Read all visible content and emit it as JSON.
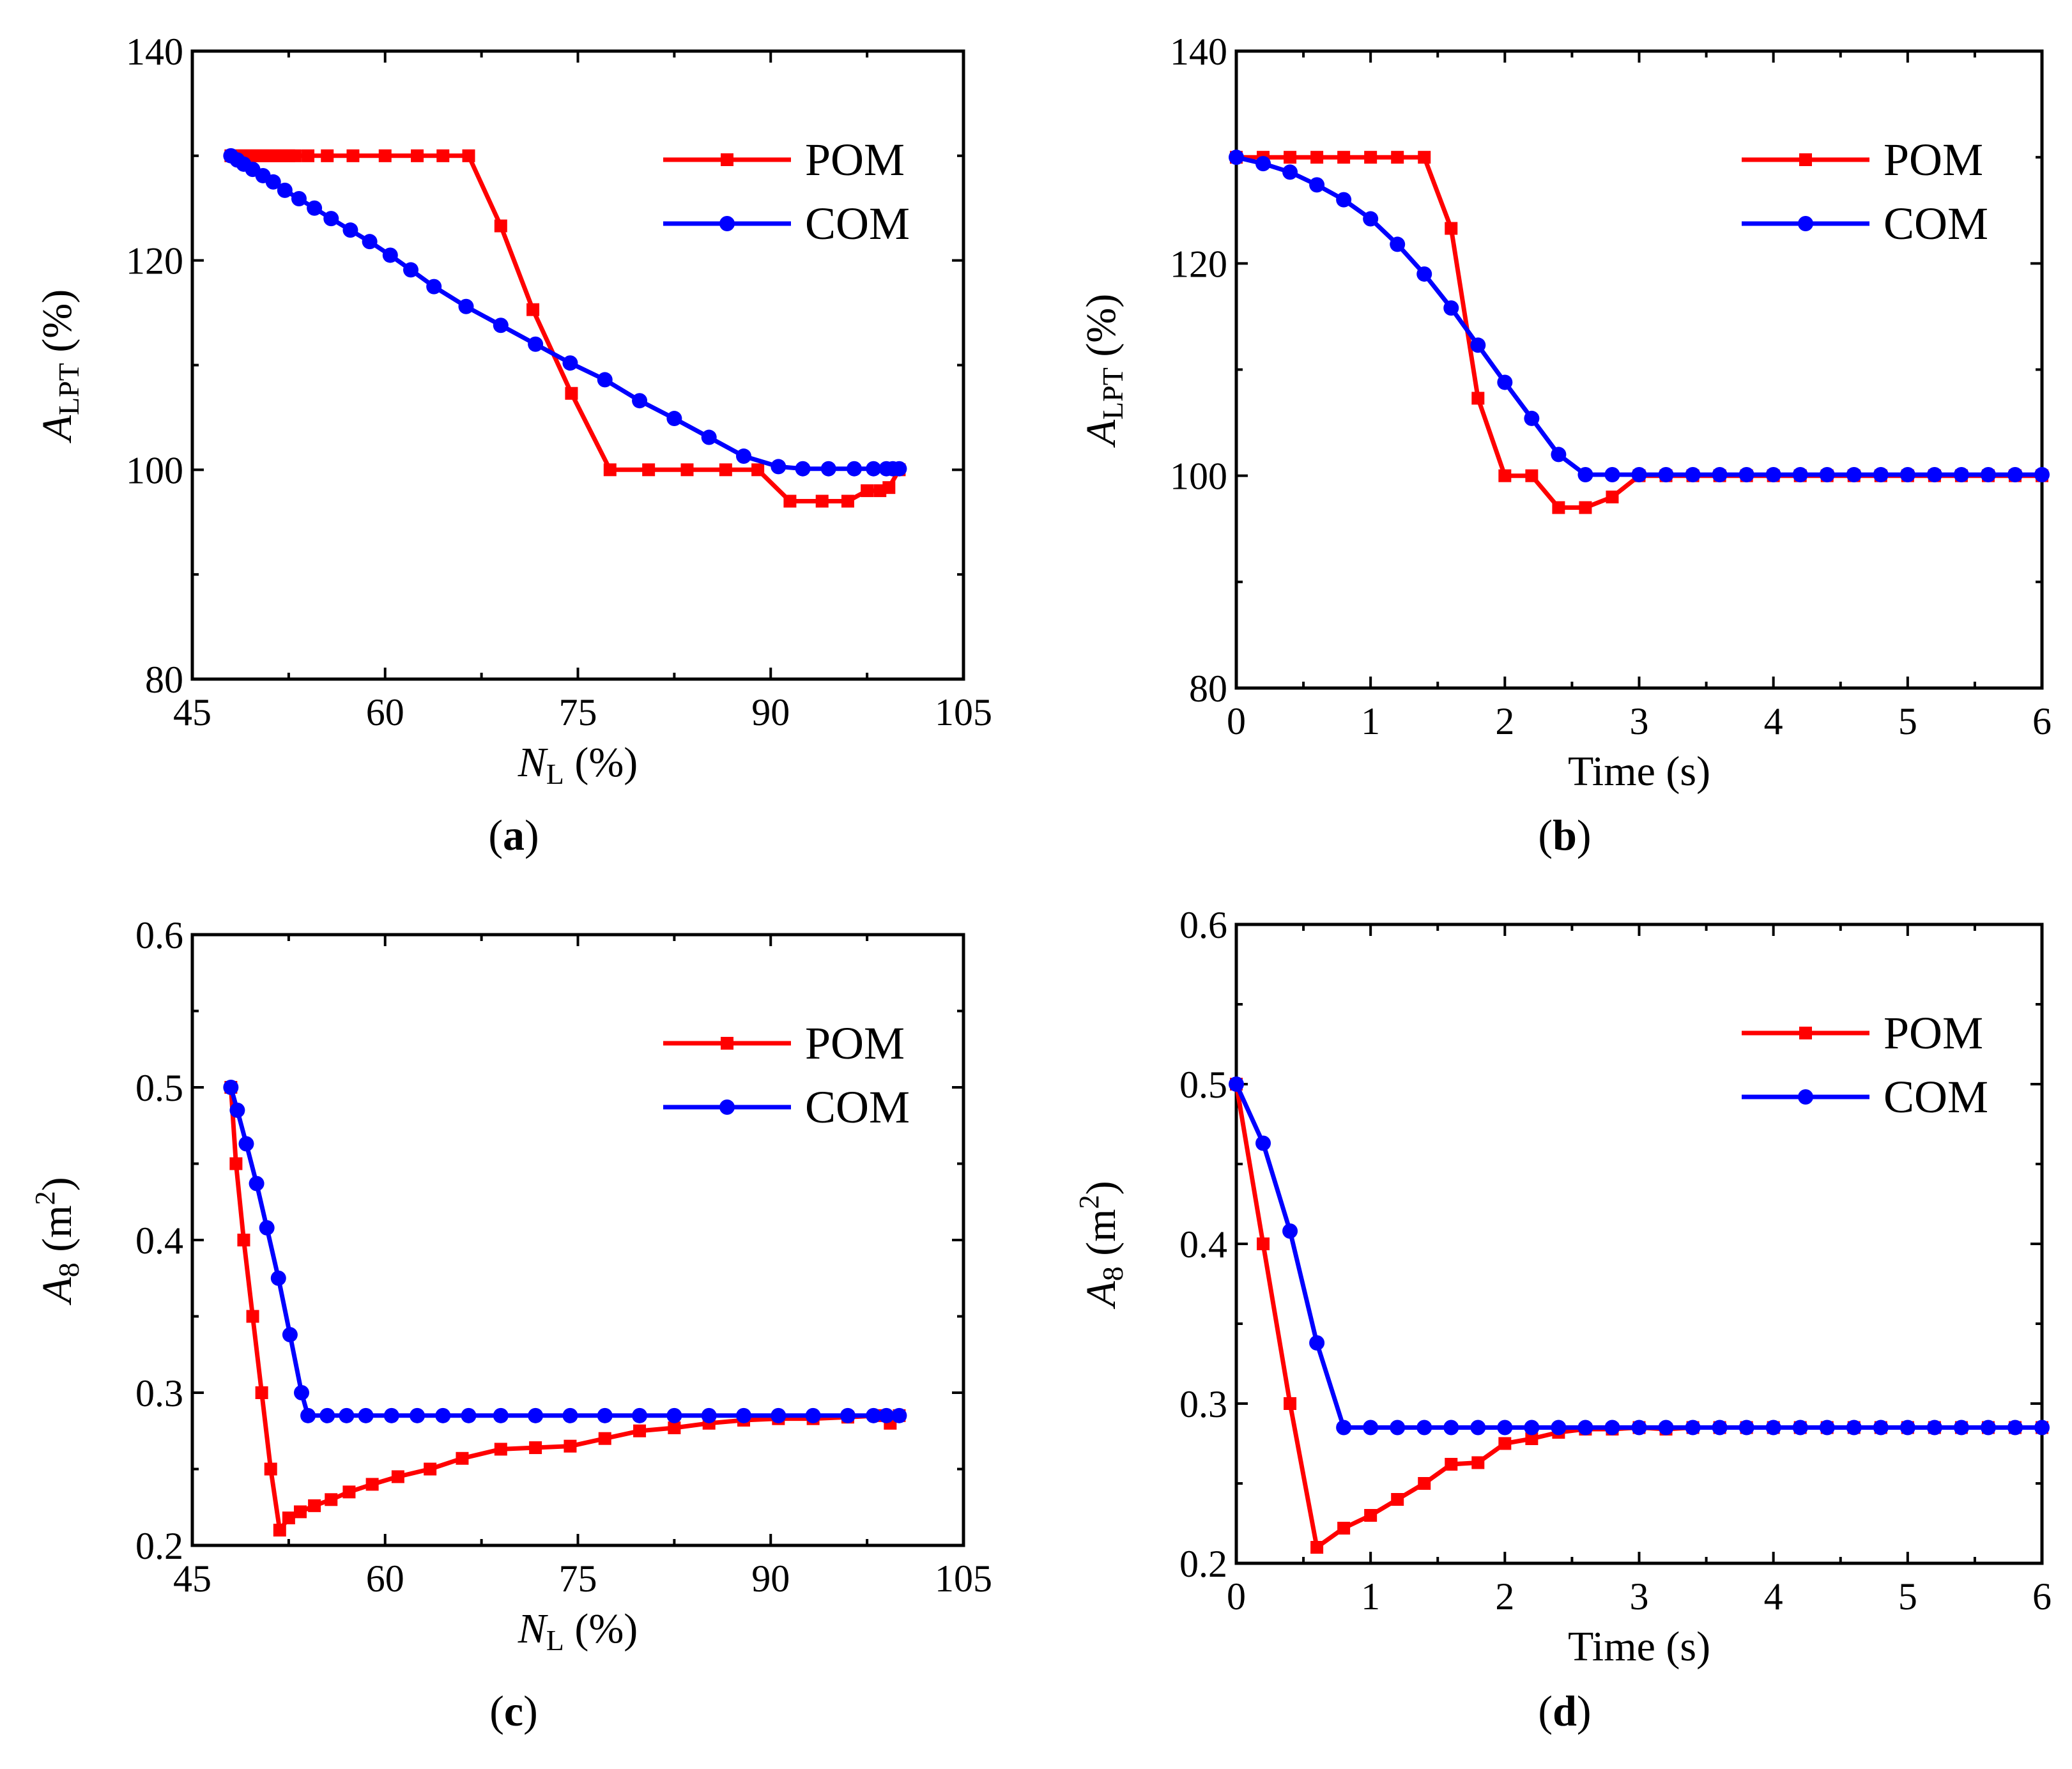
{
  "figure": {
    "colors": {
      "POM": "#ff0000",
      "COM": "#0000ff",
      "axis": "#000000"
    }
  },
  "chart_data": [
    {
      "id": "a",
      "type": "line",
      "caption": "a",
      "xlabel": {
        "main": "N",
        "sub": "L",
        "unit": " (%)"
      },
      "ylabel": {
        "main": "A",
        "sub": "LPT",
        "unit": " (%)"
      },
      "xlim": [
        45,
        105
      ],
      "ylim": [
        80,
        140
      ],
      "xticks": [
        "45",
        "60",
        "75",
        "90",
        "105"
      ],
      "yticks": [
        "80",
        "100",
        "120",
        "140"
      ],
      "legend": {
        "position": "top-right",
        "entries": [
          "POM",
          "COM"
        ]
      },
      "series": [
        {
          "name": "POM",
          "marker": "square",
          "x": [
            48,
            48.5,
            49,
            49.5,
            50,
            50.5,
            51,
            51.5,
            52,
            52.5,
            53,
            54,
            55.5,
            57.5,
            60,
            62.5,
            64.5,
            66.5,
            69,
            71.5,
            74.5,
            77.5,
            80.5,
            83.5,
            86.5,
            89,
            91.5,
            94,
            96,
            97.5,
            98.5,
            99.2,
            100
          ],
          "y": [
            130,
            130,
            130,
            130,
            130,
            130,
            130,
            130,
            130,
            130,
            130,
            130,
            130,
            130,
            130,
            130,
            130,
            130,
            123.3,
            115.3,
            107.3,
            100,
            100,
            100,
            100,
            100,
            97,
            97,
            97,
            98,
            98,
            98.3,
            100
          ]
        },
        {
          "name": "COM",
          "marker": "circle",
          "x": [
            48,
            48.5,
            49,
            49.7,
            50.5,
            51.3,
            52.2,
            53.3,
            54.5,
            55.8,
            57.3,
            58.8,
            60.4,
            62,
            63.8,
            66.3,
            69.0,
            71.7,
            74.4,
            77.1,
            79.8,
            82.5,
            85.2,
            87.9,
            90.6,
            92.5,
            94.5,
            96.5,
            98.0,
            99.0,
            99.5,
            100
          ],
          "y": [
            130,
            129.6,
            129.2,
            128.7,
            128.1,
            127.5,
            126.7,
            125.9,
            125.0,
            124.0,
            122.9,
            121.8,
            120.5,
            119.1,
            117.5,
            115.6,
            113.8,
            112.0,
            110.2,
            108.6,
            106.6,
            104.9,
            103.1,
            101.3,
            100.3,
            100.1,
            100.1,
            100.1,
            100.1,
            100.1,
            100.1,
            100.1
          ]
        }
      ]
    },
    {
      "id": "b",
      "type": "line",
      "caption": "b",
      "xlabel": {
        "main": "Time (s)",
        "sub": "",
        "unit": ""
      },
      "ylabel": {
        "main": "A",
        "sub": "LPT",
        "unit": " (%)"
      },
      "xlim": [
        0,
        6
      ],
      "ylim": [
        80,
        140
      ],
      "xticks": [
        "0",
        "1",
        "2",
        "3",
        "4",
        "5",
        "6"
      ],
      "yticks": [
        "80",
        "100",
        "120",
        "140"
      ],
      "legend": {
        "position": "top-right",
        "entries": [
          "POM",
          "COM"
        ]
      },
      "series": [
        {
          "name": "POM",
          "marker": "square",
          "x": [
            0,
            0.2,
            0.4,
            0.6,
            0.8,
            1.0,
            1.2,
            1.4,
            1.6,
            1.8,
            2.0,
            2.2,
            2.4,
            2.6,
            2.8,
            3.0,
            3.2,
            3.4,
            3.6,
            3.8,
            4.0,
            4.2,
            4.4,
            4.6,
            4.8,
            5.0,
            5.2,
            5.4,
            5.6,
            5.8,
            6.0
          ],
          "y": [
            130,
            130,
            130,
            130,
            130,
            130,
            130,
            130,
            123.3,
            107.3,
            100,
            100,
            97,
            97,
            98,
            100,
            100,
            100,
            100,
            100,
            100,
            100,
            100,
            100,
            100,
            100,
            100,
            100,
            100,
            100,
            100
          ]
        },
        {
          "name": "COM",
          "marker": "circle",
          "x": [
            0,
            0.2,
            0.4,
            0.6,
            0.8,
            1.0,
            1.2,
            1.4,
            1.6,
            1.8,
            2.0,
            2.2,
            2.4,
            2.6,
            2.8,
            3.0,
            3.2,
            3.4,
            3.6,
            3.8,
            4.0,
            4.2,
            4.4,
            4.6,
            4.8,
            5.0,
            5.2,
            5.4,
            5.6,
            5.8,
            6.0
          ],
          "y": [
            130,
            129.4,
            128.6,
            127.4,
            126.0,
            124.2,
            121.8,
            119.0,
            115.8,
            112.3,
            108.8,
            105.4,
            102.0,
            100.1,
            100.1,
            100.1,
            100.1,
            100.1,
            100.1,
            100.1,
            100.1,
            100.1,
            100.1,
            100.1,
            100.1,
            100.1,
            100.1,
            100.1,
            100.1,
            100.1,
            100.1
          ]
        }
      ]
    },
    {
      "id": "c",
      "type": "line",
      "caption": "c",
      "xlabel": {
        "main": "N",
        "sub": "L",
        "unit": " (%)"
      },
      "ylabel": {
        "main": "A",
        "sub": "8",
        "unit": " (m",
        "sup": "2",
        "unit2": ")"
      },
      "xlim": [
        45,
        105
      ],
      "ylim": [
        0.2,
        0.6
      ],
      "xticks": [
        "45",
        "60",
        "75",
        "90",
        "105"
      ],
      "yticks": [
        "0.2",
        "0.3",
        "0.4",
        "0.5",
        "0.6"
      ],
      "legend": {
        "position": "top-right",
        "entries": [
          "POM",
          "COM"
        ]
      },
      "series": [
        {
          "name": "POM",
          "marker": "square",
          "x": [
            48,
            48.4,
            49,
            49.7,
            50.4,
            51.1,
            51.8,
            52.5,
            53.4,
            54.5,
            55.8,
            57.2,
            59,
            61,
            63.5,
            66,
            69,
            71.7,
            74.4,
            77.1,
            79.8,
            82.5,
            85.2,
            87.9,
            90.6,
            93.3,
            96,
            98.5,
            99.3,
            100
          ],
          "y": [
            0.5,
            0.45,
            0.4,
            0.35,
            0.3,
            0.25,
            0.21,
            0.218,
            0.222,
            0.226,
            0.23,
            0.235,
            0.24,
            0.245,
            0.25,
            0.257,
            0.263,
            0.264,
            0.265,
            0.27,
            0.275,
            0.277,
            0.28,
            0.282,
            0.283,
            0.283,
            0.284,
            0.285,
            0.28,
            0.285
          ]
        },
        {
          "name": "COM",
          "marker": "circle",
          "x": [
            48,
            48.5,
            49.2,
            50,
            50.8,
            51.7,
            52.6,
            53.5,
            54,
            55.5,
            57,
            58.5,
            60.5,
            62.5,
            64.5,
            66.5,
            69,
            71.7,
            74.4,
            77.1,
            79.8,
            82.5,
            85.2,
            87.9,
            90.6,
            93.3,
            96,
            98,
            99,
            100
          ],
          "y": [
            0.5,
            0.485,
            0.463,
            0.437,
            0.408,
            0.375,
            0.338,
            0.3,
            0.285,
            0.285,
            0.285,
            0.285,
            0.285,
            0.285,
            0.285,
            0.285,
            0.285,
            0.285,
            0.285,
            0.285,
            0.285,
            0.285,
            0.285,
            0.285,
            0.285,
            0.285,
            0.285,
            0.285,
            0.285,
            0.285
          ]
        }
      ]
    },
    {
      "id": "d",
      "type": "line",
      "caption": "d",
      "xlabel": {
        "main": "Time (s)",
        "sub": "",
        "unit": ""
      },
      "ylabel": {
        "main": "A",
        "sub": "8",
        "unit": " (m",
        "sup": "2",
        "unit2": ")"
      },
      "xlim": [
        0,
        6
      ],
      "ylim": [
        0.2,
        0.6
      ],
      "xticks": [
        "0",
        "1",
        "2",
        "3",
        "4",
        "5",
        "6"
      ],
      "yticks": [
        "0.2",
        "0.3",
        "0.4",
        "0.5",
        "0.6"
      ],
      "legend": {
        "position": "top-right",
        "entries": [
          "POM",
          "COM"
        ]
      },
      "series": [
        {
          "name": "POM",
          "marker": "square",
          "x": [
            0,
            0.2,
            0.4,
            0.6,
            0.8,
            1.0,
            1.2,
            1.4,
            1.6,
            1.8,
            2.0,
            2.2,
            2.4,
            2.6,
            2.8,
            3.0,
            3.2,
            3.4,
            3.6,
            3.8,
            4.0,
            4.2,
            4.4,
            4.6,
            4.8,
            5.0,
            5.2,
            5.4,
            5.6,
            5.8,
            6.0
          ],
          "y": [
            0.5,
            0.4,
            0.3,
            0.21,
            0.222,
            0.23,
            0.24,
            0.25,
            0.262,
            0.263,
            0.275,
            0.278,
            0.282,
            0.284,
            0.284,
            0.285,
            0.284,
            0.285,
            0.285,
            0.285,
            0.285,
            0.285,
            0.285,
            0.285,
            0.285,
            0.285,
            0.285,
            0.285,
            0.285,
            0.285,
            0.285
          ]
        },
        {
          "name": "COM",
          "marker": "circle",
          "x": [
            0,
            0.2,
            0.4,
            0.6,
            0.8,
            1.0,
            1.2,
            1.4,
            1.6,
            1.8,
            2.0,
            2.2,
            2.4,
            2.6,
            2.8,
            3.0,
            3.2,
            3.4,
            3.6,
            3.8,
            4.0,
            4.2,
            4.4,
            4.6,
            4.8,
            5.0,
            5.2,
            5.4,
            5.6,
            5.8,
            6.0
          ],
          "y": [
            0.5,
            0.463,
            0.408,
            0.338,
            0.285,
            0.285,
            0.285,
            0.285,
            0.285,
            0.285,
            0.285,
            0.285,
            0.285,
            0.285,
            0.285,
            0.285,
            0.285,
            0.285,
            0.285,
            0.285,
            0.285,
            0.285,
            0.285,
            0.285,
            0.285,
            0.285,
            0.285,
            0.285,
            0.285,
            0.285,
            0.285
          ]
        }
      ]
    }
  ]
}
